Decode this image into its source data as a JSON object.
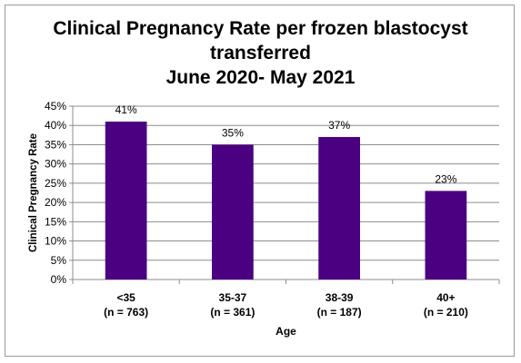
{
  "chart_data": {
    "type": "bar",
    "title_lines": [
      "Clinical Pregnancy Rate per frozen blastocyst",
      "transferred",
      "June 2020- May 2021"
    ],
    "categories": [
      {
        "line1": "<35",
        "line2": "(n = 763)"
      },
      {
        "line1": "35-37",
        "line2": "(n = 361)"
      },
      {
        "line1": "38-39",
        "line2": "(n = 187)"
      },
      {
        "line1": "40+",
        "line2": "(n = 210)"
      }
    ],
    "values": [
      41,
      35,
      37,
      23
    ],
    "data_labels": [
      "41%",
      "35%",
      "37%",
      "23%"
    ],
    "xlabel": "Age",
    "ylabel": "Clinical Pregnancy Rate",
    "ylim": [
      0,
      45
    ],
    "yticks": [
      "0%",
      "5%",
      "10%",
      "15%",
      "20%",
      "25%",
      "30%",
      "35%",
      "40%",
      "45%"
    ],
    "grid": true,
    "legend": "none",
    "bar_color": "#4b0082"
  }
}
